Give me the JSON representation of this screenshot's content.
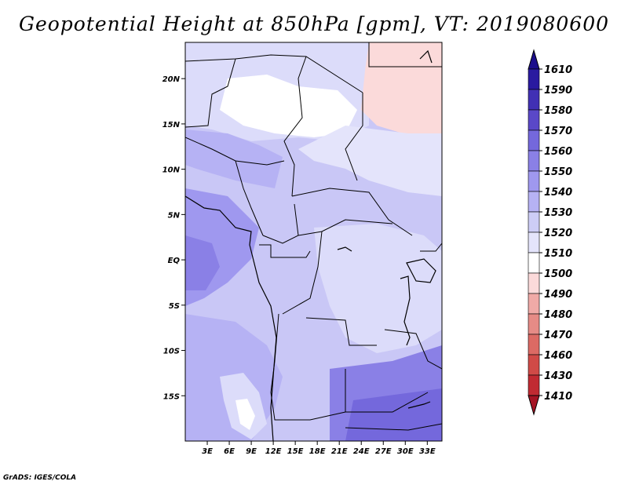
{
  "title": "Geopotential Height at 850hPa [gpm], VT: 2019080600",
  "credit": "GrADS: IGES/COLA",
  "map": {
    "lon_range": [
      0,
      35
    ],
    "lat_range": [
      -20,
      24
    ],
    "lat_ticks": [
      {
        "value": 20,
        "label": "20N"
      },
      {
        "value": 15,
        "label": "15N"
      },
      {
        "value": 10,
        "label": "10N"
      },
      {
        "value": 5,
        "label": "5N"
      },
      {
        "value": 0,
        "label": "EQ"
      },
      {
        "value": -5,
        "label": "5S"
      },
      {
        "value": -10,
        "label": "10S"
      },
      {
        "value": -15,
        "label": "15S"
      }
    ],
    "lon_ticks": [
      {
        "value": 3,
        "label": "3E"
      },
      {
        "value": 6,
        "label": "6E"
      },
      {
        "value": 9,
        "label": "9E"
      },
      {
        "value": 12,
        "label": "12E"
      },
      {
        "value": 15,
        "label": "15E"
      },
      {
        "value": 18,
        "label": "18E"
      },
      {
        "value": 21,
        "label": "21E"
      },
      {
        "value": 24,
        "label": "24E"
      },
      {
        "value": 27,
        "label": "27E"
      },
      {
        "value": 30,
        "label": "30E"
      },
      {
        "value": 33,
        "label": "33E"
      }
    ]
  },
  "colorbar": {
    "levels": [
      {
        "label": "1410",
        "color": "#b2182b"
      },
      {
        "label": "1430",
        "color": "#c12a32"
      },
      {
        "label": "1460",
        "color": "#d04a47"
      },
      {
        "label": "1470",
        "color": "#dc6a64"
      },
      {
        "label": "1480",
        "color": "#e68b86"
      },
      {
        "label": "1490",
        "color": "#f0aaa7"
      },
      {
        "label": "1500",
        "color": "#fbdada"
      },
      {
        "label": "1510",
        "color": "#ffffff"
      },
      {
        "label": "1520",
        "color": "#e4e4fb"
      },
      {
        "label": "1530",
        "color": "#cdcdf6"
      },
      {
        "label": "1540",
        "color": "#b6b2f4"
      },
      {
        "label": "1550",
        "color": "#9f98ef"
      },
      {
        "label": "1560",
        "color": "#8a80e6"
      },
      {
        "label": "1570",
        "color": "#7468dc"
      },
      {
        "label": "1580",
        "color": "#5a48c8"
      },
      {
        "label": "1590",
        "color": "#4130b4"
      },
      {
        "label": "1610",
        "color": "#2a1aa0"
      }
    ],
    "top_color": "#1c0e8c",
    "bottom_color": "#a51424"
  }
}
